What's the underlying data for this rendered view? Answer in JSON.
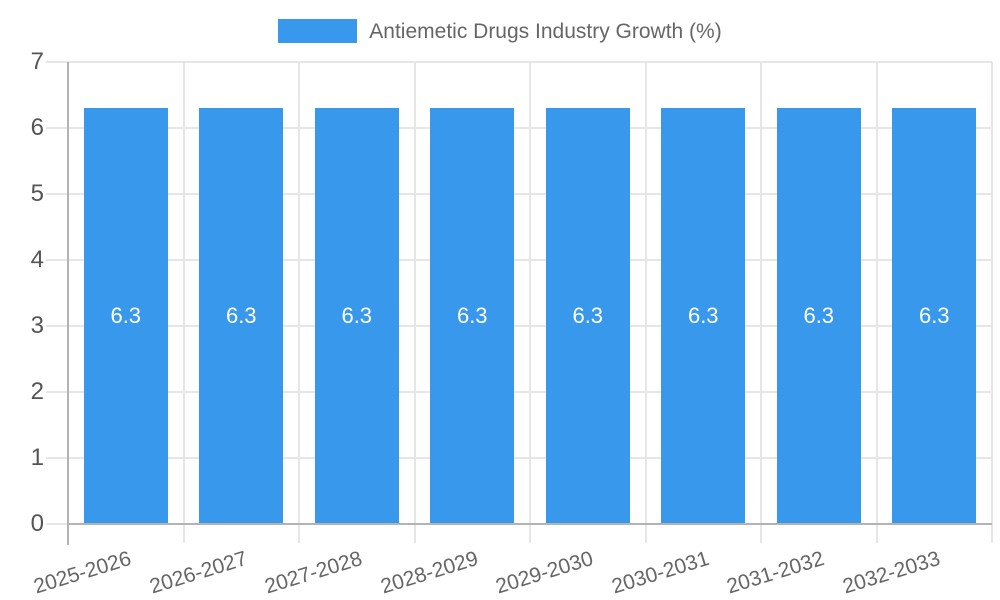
{
  "chart_data": {
    "type": "bar",
    "title": "Antiemetic Drugs Industry Growth (%)",
    "categories": [
      "2025-2026",
      "2026-2027",
      "2027-2028",
      "2028-2029",
      "2029-2030",
      "2030-2031",
      "2031-2032",
      "2032-2033"
    ],
    "series": [
      {
        "name": "Antiemetic Drugs Industry Growth (%)",
        "values": [
          6.3,
          6.3,
          6.3,
          6.3,
          6.3,
          6.3,
          6.3,
          6.3
        ]
      }
    ],
    "value_labels": [
      "6.3",
      "6.3",
      "6.3",
      "6.3",
      "6.3",
      "6.3",
      "6.3",
      "6.3"
    ],
    "xlabel": "",
    "ylabel": "",
    "ylim": [
      0,
      7
    ],
    "yticks": [
      "0",
      "1",
      "2",
      "3",
      "4",
      "5",
      "6",
      "7"
    ],
    "grid": true,
    "legend_position": "top",
    "colors": {
      "bar": "#3898ec",
      "grid": "#e6e6e6",
      "axis": "#b3b3b3",
      "y_tick_label": "#555555",
      "x_tick_label": "#666666",
      "legend_text": "#666666",
      "bar_label": "#ffffff",
      "background": "#ffffff"
    }
  }
}
